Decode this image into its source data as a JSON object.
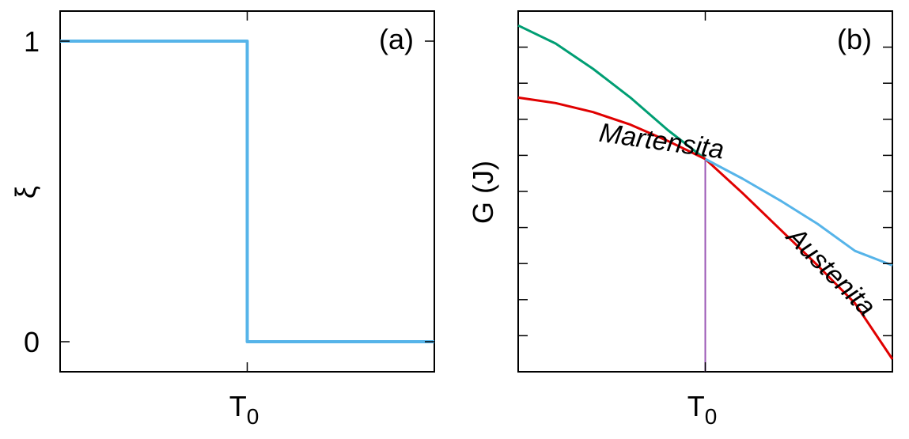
{
  "chart_data": [
    {
      "type": "line",
      "panel_label": "(a)",
      "ylabel": "ξ",
      "xlabel": "",
      "x_ticks": [
        {
          "value": 0.5,
          "label": "T",
          "sub": "0"
        }
      ],
      "y_ticks": [
        {
          "value": 0,
          "label": "0"
        },
        {
          "value": 1,
          "label": "1"
        }
      ],
      "xlim": [
        0,
        1
      ],
      "ylim": [
        -0.1,
        1.1
      ],
      "series": [
        {
          "color": "#56b4e9",
          "x": [
            0,
            0.5,
            0.5,
            1.0
          ],
          "y": [
            1,
            1,
            0,
            0
          ]
        }
      ]
    },
    {
      "type": "line",
      "panel_label": "(b)",
      "ylabel": "G (J)",
      "xlabel": "",
      "x_ticks": [
        {
          "value": 0.5,
          "label": "T",
          "sub": "0"
        }
      ],
      "xlim": [
        0,
        1
      ],
      "ylim": [
        0,
        10
      ],
      "y_minor_ticks": [
        1,
        2,
        3,
        4,
        5,
        6,
        7,
        8,
        9
      ],
      "annotations": [
        {
          "text": "Martensita",
          "x": 0.38,
          "y": 6.15,
          "angle": 8
        },
        {
          "text": "Austenita",
          "x": 0.82,
          "y": 2.6,
          "angle": 45
        }
      ],
      "marker_line": {
        "x": 0.5,
        "color": "#9b59b6"
      },
      "series": [
        {
          "color": "#009e73",
          "x": [
            0,
            0.1,
            0.2,
            0.3,
            0.4,
            0.5
          ],
          "y": [
            9.6,
            9.1,
            8.4,
            7.6,
            6.7,
            5.9
          ]
        },
        {
          "color": "#e00000",
          "x": [
            0,
            0.1,
            0.2,
            0.3,
            0.4,
            0.5,
            0.6,
            0.7,
            0.8,
            0.9,
            1.0
          ],
          "y": [
            7.6,
            7.45,
            7.2,
            6.85,
            6.4,
            5.9,
            4.95,
            3.95,
            2.95,
            1.9,
            0.35
          ]
        },
        {
          "color": "#56b4e9",
          "x": [
            0.5,
            0.6,
            0.7,
            0.8,
            0.9,
            1.0
          ],
          "y": [
            5.9,
            5.35,
            4.75,
            4.1,
            3.35,
            2.95
          ]
        }
      ]
    }
  ]
}
